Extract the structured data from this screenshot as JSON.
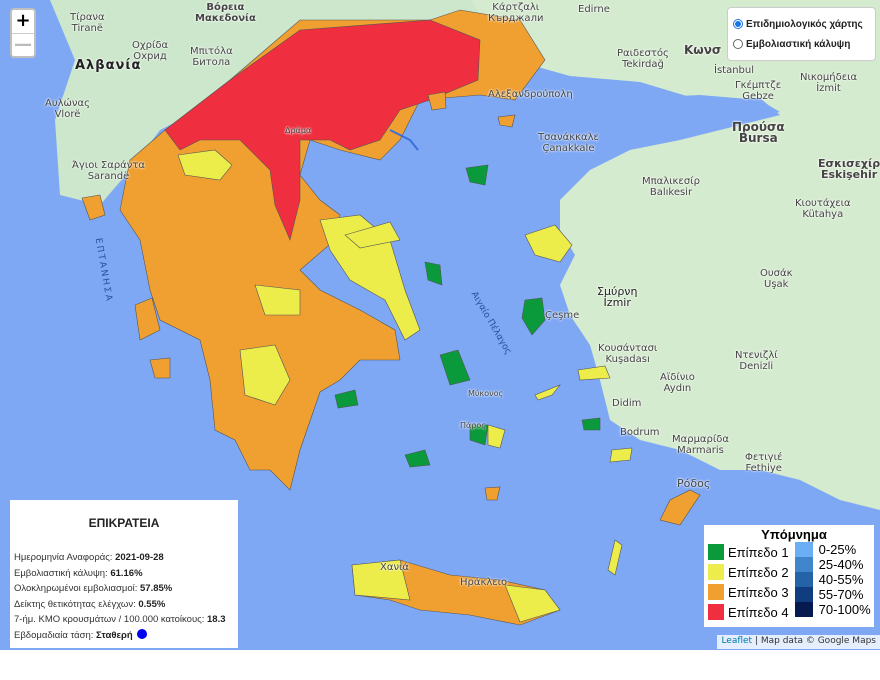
{
  "map_controls": {
    "zoom_in": "+",
    "zoom_out": "—"
  },
  "layer_switch": {
    "options": [
      {
        "label": "Επιδημιολογικός χάρτης",
        "selected": true
      },
      {
        "label": "Εμβολιαστική κάλυψη",
        "selected": false
      }
    ]
  },
  "map": {
    "labels": [
      "Τίρανα",
      "Tiranë",
      "Αλβανία",
      "Βόρεια",
      "Μακεδονία",
      "Οχρίδα",
      "Охрид",
      "Μπιτόλα",
      "Битола",
      "Αυλώνας",
      "Vlorë",
      "Άγιοι Σαράντα",
      "Sarandë",
      "Κάρτζαλι",
      "Кърджали",
      "Edirne",
      "Ραιδεστός",
      "Tekirdağ",
      "Κωνσ",
      "İstanbul",
      "Γκέμπτζε",
      "Gebze",
      "Νικομήδεια",
      "İzmit",
      "Αλεξανδρούπολη",
      "Τσανάκκαλε",
      "Çanakkale",
      "Προύσα",
      "Bursa",
      "Εσκισεχίρ",
      "Eskişehir",
      "Μπαλικεσίρ",
      "Balıkesir",
      "Κιουτάχεια",
      "Kütahya",
      "Σμύρνη",
      "İzmir",
      "Ουσάκ",
      "Uşak",
      "Κουσάντασι",
      "Kuşadası",
      "Αϊδίνιο",
      "Aydın",
      "Ντενιζλί",
      "Denizli",
      "Bodrum",
      "Μαρμαρίδα",
      "Marmaris",
      "Ρόδος",
      "Χανιά",
      "Ηράκλειο",
      "Αιγαίο Πέλαγος",
      "ΕΠΤΑΝΗΣΑ",
      "Μύκονος",
      "Πάρος",
      "Δράμα",
      "Çeşme",
      "Didim",
      "Φετιγιέ",
      "Fethiye"
    ],
    "colors": {
      "level1": "#0a9a3c",
      "level2": "#ecec4a",
      "level3": "#f0a030",
      "level4": "#ef2f3f",
      "sea": "#7fa8f4",
      "land": "#cfe9cf"
    }
  },
  "info_panel": {
    "title": "ΕΠΙΚΡΑΤΕΙΑ",
    "rows": [
      {
        "label": "Ημερομηνία Αναφοράς: ",
        "value": "2021-09-28"
      },
      {
        "label": "Εμβολιαστική κάλυψη: ",
        "value": "61.16%"
      },
      {
        "label": "Ολοκληρωμένοι εμβολιασμοί: ",
        "value": "57.85%"
      },
      {
        "label": "Δείκτης θετικότητας ελέγχων: ",
        "value": "0.55%"
      },
      {
        "label": "7-ήμ. ΚΜΟ κρουσμάτων / 100.000 κατοίκους: ",
        "value": "18.3"
      },
      {
        "label": "Εβδομαδιαία τάση: ",
        "value": "Σταθερή"
      }
    ],
    "trend_color": "#0000ee"
  },
  "legend": {
    "title": "Υπόμνημα",
    "levels": [
      {
        "label": "Επίπεδο 1",
        "color": "#0a9a3c"
      },
      {
        "label": "Επίπεδο 2",
        "color": "#ecec4a"
      },
      {
        "label": "Επίπεδο 3",
        "color": "#f0a030"
      },
      {
        "label": "Επίπεδο 4",
        "color": "#ef2f3f"
      }
    ],
    "coverage": [
      {
        "label": "0-25%",
        "color": "#6aaef5"
      },
      {
        "label": "25-40%",
        "color": "#3f86cc"
      },
      {
        "label": "40-55%",
        "color": "#2463a8"
      },
      {
        "label": "55-70%",
        "color": "#0f3d80"
      },
      {
        "label": "70-100%",
        "color": "#061a50"
      }
    ]
  },
  "attribution": {
    "leaflet": "Leaflet",
    "sep": " | ",
    "text": "Map data © Google Maps"
  }
}
